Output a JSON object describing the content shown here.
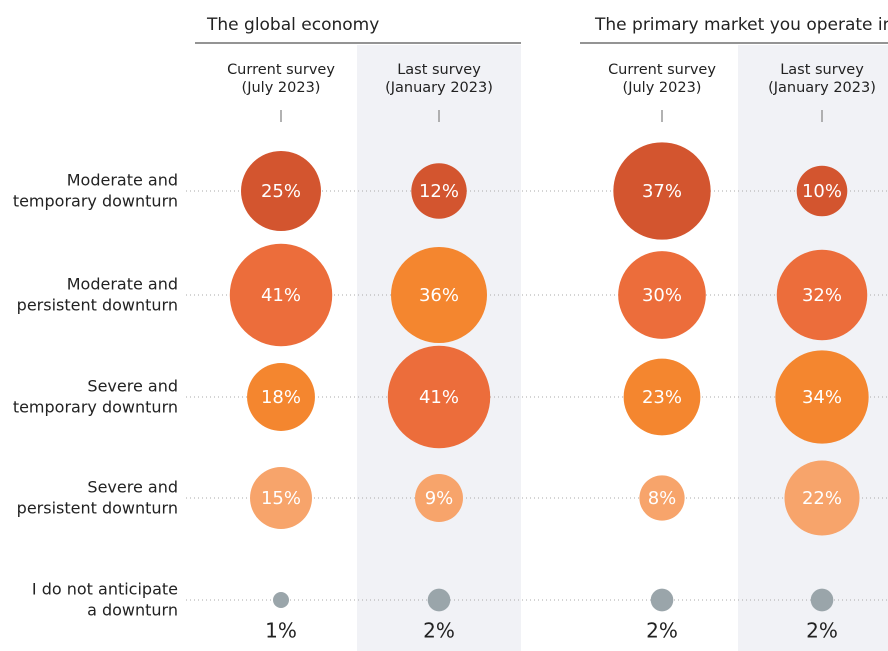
{
  "chart_data": {
    "type": "bubble",
    "categories": [
      [
        "Moderate and",
        "temporary downturn"
      ],
      [
        "Moderate and",
        "persistent downturn"
      ],
      [
        "Severe and",
        "temporary downturn"
      ],
      [
        "Severe and",
        "persistent downturn"
      ],
      [
        "I do not anticipate",
        "a downturn"
      ]
    ],
    "groups": [
      {
        "title": "The global economy",
        "series": [
          {
            "name": [
              "Current survey",
              "(July 2023)"
            ],
            "values": [
              25,
              41,
              18,
              15,
              1
            ],
            "value_labels": [
              "25%",
              "41%",
              "18%",
              "15%",
              "1%"
            ],
            "colors": [
              "#d3552f",
              "#ec6d3b",
              "#f4862f",
              "#f7a46b",
              "#9aa5aa"
            ]
          },
          {
            "name": [
              "Last survey",
              "(January 2023)"
            ],
            "values": [
              12,
              36,
              41,
              9,
              2
            ],
            "value_labels": [
              "12%",
              "36%",
              "41%",
              "9%",
              "2%"
            ],
            "colors": [
              "#d3552f",
              "#f4862f",
              "#ec6d3b",
              "#f7a46b",
              "#9aa5aa"
            ]
          }
        ]
      },
      {
        "title": "The primary market you operate in",
        "series": [
          {
            "name": [
              "Current survey",
              "(July 2023)"
            ],
            "values": [
              37,
              30,
              23,
              8,
              2
            ],
            "value_labels": [
              "37%",
              "30%",
              "23%",
              "8%",
              "2%"
            ],
            "colors": [
              "#d3552f",
              "#ec6d3b",
              "#f4862f",
              "#f7a46b",
              "#9aa5aa"
            ]
          },
          {
            "name": [
              "Last survey",
              "(January 2023)"
            ],
            "values": [
              10,
              32,
              34,
              22,
              2
            ],
            "value_labels": [
              "10%",
              "32%",
              "34%",
              "22%",
              "2%"
            ],
            "colors": [
              "#d3552f",
              "#ec6d3b",
              "#f4862f",
              "#f7a46b",
              "#9aa5aa"
            ]
          }
        ]
      }
    ]
  }
}
